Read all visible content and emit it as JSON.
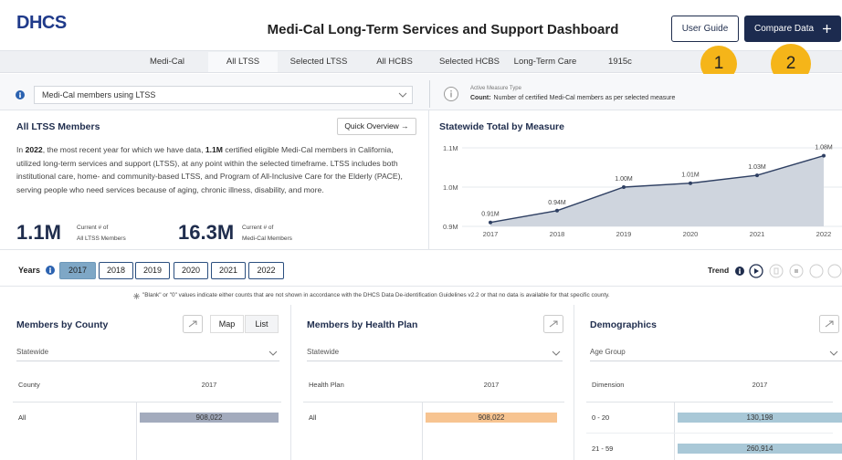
{
  "header": {
    "logo": "DHCS",
    "title": "Medi-Cal Long-Term Services and Support Dashboard",
    "buttons": [
      "User Guide",
      "Compare Data"
    ]
  },
  "tabs": [
    "Medi-Cal",
    "All LTSS",
    "Selected LTSS",
    "All HCBS",
    "Selected HCBS",
    "Long-Term Care",
    "1915c"
  ],
  "selected_tab": 1,
  "badges": [
    "1",
    "2"
  ],
  "measure_select": "Medi-Cal members using LTSS",
  "active_measure": {
    "label": "Active Measure Type",
    "key": "Count:",
    "text": "Number of certified Medi-Cal members as per selected measure"
  },
  "summary": {
    "title": "All LTSS Members",
    "button": "Quick Overview →",
    "paragraph": [
      {
        "text": "In "
      },
      {
        "text": "2022",
        "bold": true
      },
      {
        "text": ", the most recent year for which we have data, "
      },
      {
        "text": "1.1M",
        "bold": true
      },
      {
        "text": " certified eligible Medi-Cal members in California, utilized long-term services and support (LTSS), at any point within the selected timeframe. LTSS includes both institutional care, home- and community-based LTSS, and Program of All-Inclusive Care for the Elderly (PACE), serving people who need services because of aging, chronic illness, disability, and more."
      }
    ],
    "stats": [
      {
        "value": "1.1M",
        "label": "Current # of",
        "sublabel": "All LTSS Members"
      },
      {
        "value": "16.3M",
        "label": "Current # of",
        "sublabel": "Medi-Cal Members"
      }
    ]
  },
  "trend_chart": {
    "type": "line",
    "title": "Statewide Total by Measure",
    "categories": [
      "2017",
      "2018",
      "2019",
      "2020",
      "2021",
      "2022"
    ],
    "values": [
      0.91,
      0.94,
      1.0,
      1.01,
      1.03,
      1.08
    ],
    "value_labels": [
      "0.91M",
      "0.94M",
      "1.00M",
      "1.01M",
      "1.03M",
      "1.08M"
    ],
    "ylim": [
      0.9,
      1.1
    ],
    "yticks": [
      {
        "value": 0.9,
        "label": "0.9M"
      },
      {
        "value": 1.0,
        "label": "1.0M"
      },
      {
        "value": 1.1,
        "label": "1.1M"
      }
    ],
    "color": "#2f4063",
    "fill": "#cfd5de"
  },
  "years": {
    "label": "Years",
    "options": [
      "2017",
      "2018",
      "2019",
      "2020",
      "2021",
      "2022"
    ],
    "selected": 0
  },
  "trend_label": "Trend",
  "note": "\"Blank\" or \"0\" values indicate either counts that are not shown in accordance with the DHCS Data De-identification Guidelines v2.2 or that no data is available for that specific county.",
  "panels": [
    {
      "title": "Members by County",
      "toggles": [
        "Map",
        "List"
      ],
      "filter": "Statewide",
      "columns": [
        "County",
        "2017"
      ],
      "rows": [
        [
          "All",
          "908,022"
        ]
      ],
      "bar_color": "#a3abbd"
    },
    {
      "title": "Members by Health Plan",
      "filter": "Statewide",
      "columns": [
        "Health Plan",
        "2017"
      ],
      "rows": [
        [
          "All",
          "908,022"
        ]
      ],
      "bar_color": "#f7c491"
    },
    {
      "title": "Demographics",
      "filter": "Age Group",
      "columns": [
        "Dimension",
        "2017"
      ],
      "rows": [
        [
          "0 - 20",
          "130,198"
        ],
        [
          "21 - 59",
          "260,914"
        ]
      ],
      "bar_color": "#a9c8d7"
    }
  ]
}
